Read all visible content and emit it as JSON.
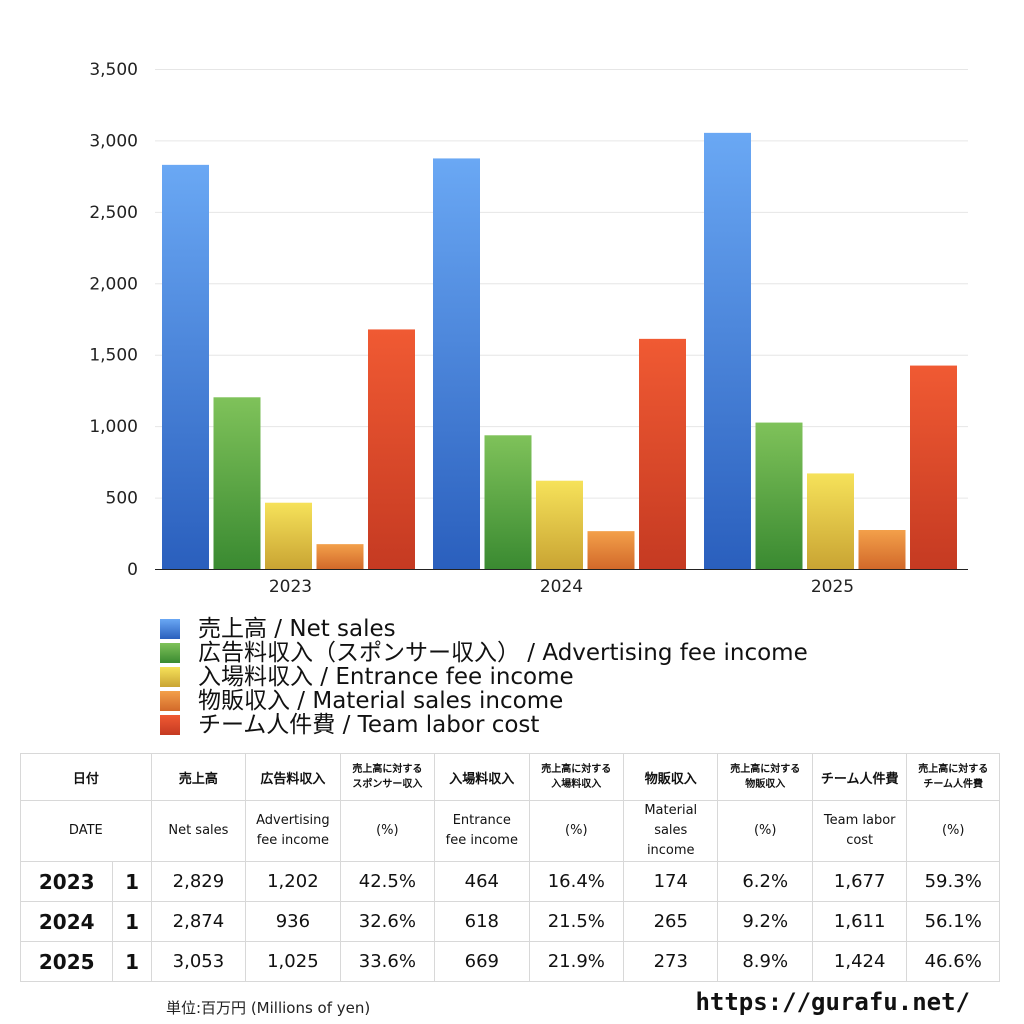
{
  "colors": {
    "net_sales": [
      "#6aa8f4",
      "#2a5fbd"
    ],
    "advertising": [
      "#7fc25a",
      "#3a8a31"
    ],
    "entrance": [
      "#f6e25a",
      "#c9a433"
    ],
    "material": [
      "#f3a04a",
      "#d2692a"
    ],
    "labor": [
      "#f05a33",
      "#c53a22"
    ],
    "grid": "#e6e6e6",
    "table_border": "#d8d8d8"
  },
  "chart_data": {
    "type": "bar",
    "categories": [
      "2023",
      "2024",
      "2025"
    ],
    "ylim": [
      0,
      3500
    ],
    "yticks": [
      "0",
      "500",
      "1,000",
      "1,500",
      "2,000",
      "2,500",
      "3,000",
      "3,500"
    ],
    "ytick_values": [
      0,
      500,
      1000,
      1500,
      2000,
      2500,
      3000,
      3500
    ],
    "grid": true,
    "legend_position": "bottom",
    "series": [
      {
        "key": "net_sales",
        "name": "売上高 / Net sales",
        "values": [
          2829,
          2874,
          3053
        ]
      },
      {
        "key": "advertising",
        "name": "広告料収入（スポンサー収入） / Advertising fee income",
        "values": [
          1202,
          936,
          1025
        ]
      },
      {
        "key": "entrance",
        "name": "入場料収入 / Entrance fee income",
        "values": [
          464,
          618,
          669
        ]
      },
      {
        "key": "material",
        "name": "物販収入 / Material sales income",
        "values": [
          174,
          265,
          273
        ]
      },
      {
        "key": "labor",
        "name": "チーム人件費 / Team labor cost",
        "values": [
          1677,
          1611,
          1424
        ]
      }
    ]
  },
  "table": {
    "header_jp": {
      "date": "日付",
      "net_sales": "売上高",
      "advertising": "広告料収入",
      "advertising_pct": "売上高に対する\nスポンサー収入",
      "entrance": "入場料収入",
      "entrance_pct": "売上高に対する\n入場料収入",
      "material": "物販収入",
      "material_pct": "売上高に対する\n物販収入",
      "labor": "チーム人件費",
      "labor_pct": "売上高に対する\nチーム人件費"
    },
    "header_en": {
      "date": "DATE",
      "net_sales": "Net sales",
      "advertising": "Advertising\nfee income",
      "advertising_pct": "(%)",
      "entrance": "Entrance\nfee income",
      "entrance_pct": "(%)",
      "material": "Material\nsales\nincome",
      "material_pct": "(%)",
      "labor": "Team labor\ncost",
      "labor_pct": "(%)"
    },
    "rows": [
      {
        "year": "2023",
        "month": "1",
        "net_sales": "2,829",
        "advertising": "1,202",
        "advertising_pct": "42.5%",
        "entrance": "464",
        "entrance_pct": "16.4%",
        "material": "174",
        "material_pct": "6.2%",
        "labor": "1,677",
        "labor_pct": "59.3%"
      },
      {
        "year": "2024",
        "month": "1",
        "net_sales": "2,874",
        "advertising": "936",
        "advertising_pct": "32.6%",
        "entrance": "618",
        "entrance_pct": "21.5%",
        "material": "265",
        "material_pct": "9.2%",
        "labor": "1,611",
        "labor_pct": "56.1%"
      },
      {
        "year": "2025",
        "month": "1",
        "net_sales": "3,053",
        "advertising": "1,025",
        "advertising_pct": "33.6%",
        "entrance": "669",
        "entrance_pct": "21.9%",
        "material": "273",
        "material_pct": "8.9%",
        "labor": "1,424",
        "labor_pct": "46.6%"
      }
    ]
  },
  "footer": {
    "unit": "単位:百万円 (Millions of yen)",
    "site": "https://gurafu.net/"
  }
}
